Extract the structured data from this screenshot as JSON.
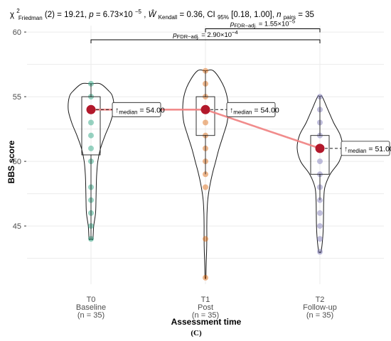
{
  "chart_data": {
    "type": "violin-box-scatter",
    "subtitle_parts": {
      "chi": "χ",
      "chi_sup": "2",
      "chi_sub": "Friedman",
      "df": "(2) = 19.21, ",
      "p_label": "p",
      "p_val": " = 6.73×10",
      "p_exp": "−5",
      "sep1": ", ",
      "w_label": "Ŵ",
      "w_sub": "Kendall",
      "w_val": " = 0.36, CI",
      "ci_sub": "95%",
      "ci_val": " [0.18, 1.00], ",
      "n_label": "n",
      "n_sub": "pairs",
      "n_val": " = 35"
    },
    "xlabel": "Assessment time",
    "ylabel": "BBS score",
    "ylim": [
      40.5,
      60.5
    ],
    "yticks": [
      45,
      50,
      55,
      60
    ],
    "categories": [
      {
        "code": "T0",
        "name": "Baseline",
        "n": "(n = 35)"
      },
      {
        "code": "T1",
        "name": "Post",
        "n": "(n = 35)"
      },
      {
        "code": "T2",
        "name": "Follow-up",
        "n": "(n = 35)"
      }
    ],
    "series": [
      {
        "color": "#1b9e77",
        "points": [
          44,
          45,
          46,
          47,
          48,
          50,
          51,
          52,
          53,
          54,
          55,
          56
        ],
        "median": 54,
        "q1": 50.5,
        "q3": 55,
        "whisker_low": 44,
        "whisker_high": 56,
        "median_label": "54.00",
        "violin": [
          [
            44,
            0.08
          ],
          [
            45,
            0.12
          ],
          [
            46,
            0.2
          ],
          [
            47,
            0.22
          ],
          [
            48,
            0.23
          ],
          [
            49,
            0.25
          ],
          [
            50,
            0.3
          ],
          [
            51,
            0.42
          ],
          [
            52,
            0.62
          ],
          [
            53,
            0.85
          ],
          [
            54,
            1.0
          ],
          [
            55,
            0.95
          ],
          [
            55.5,
            0.75
          ],
          [
            56,
            0.4
          ]
        ]
      },
      {
        "color": "#d95f02",
        "points": [
          41,
          44,
          48,
          49,
          50,
          51,
          52,
          53,
          54,
          55,
          56,
          57
        ],
        "median": 54,
        "q1": 52,
        "q3": 55,
        "whisker_low": 49,
        "whisker_high": 57,
        "median_label": "54.00",
        "violin": [
          [
            41,
            0.02
          ],
          [
            42,
            0.03
          ],
          [
            43,
            0.05
          ],
          [
            44,
            0.06
          ],
          [
            45,
            0.06
          ],
          [
            46,
            0.07
          ],
          [
            47,
            0.1
          ],
          [
            48,
            0.18
          ],
          [
            49,
            0.3
          ],
          [
            50,
            0.45
          ],
          [
            51,
            0.6
          ],
          [
            52,
            0.78
          ],
          [
            53,
            0.95
          ],
          [
            54,
            1.0
          ],
          [
            55,
            0.95
          ],
          [
            56,
            0.75
          ],
          [
            57,
            0.35
          ]
        ]
      },
      {
        "color": "#7570b3",
        "points": [
          43,
          44,
          45,
          46,
          47,
          48,
          49,
          50,
          51,
          52,
          53,
          54,
          55
        ],
        "median": 51,
        "q1": 49,
        "q3": 52,
        "whisker_low": 47,
        "whisker_high": 55,
        "median_label": "51.00",
        "violin": [
          [
            43,
            0.05
          ],
          [
            44,
            0.12
          ],
          [
            45,
            0.15
          ],
          [
            46,
            0.16
          ],
          [
            47,
            0.17
          ],
          [
            48,
            0.22
          ],
          [
            49,
            0.45
          ],
          [
            50,
            0.85
          ],
          [
            51,
            1.0
          ],
          [
            52,
            0.9
          ],
          [
            53,
            0.6
          ],
          [
            54,
            0.35
          ],
          [
            55,
            0.1
          ]
        ]
      }
    ],
    "comparisons": [
      {
        "from": 1,
        "to": 2,
        "label_p": "p",
        "label_sub": "FDR−adj.",
        "label_val": " = 1.55×10",
        "label_exp": "−5"
      },
      {
        "from": 0,
        "to": 2,
        "label_p": "p",
        "label_sub": "FDR−adj.",
        "label_val": " = 2.90×10",
        "label_exp": "−4"
      }
    ],
    "median_prefix": "median",
    "median_arrow": "↑",
    "median_color": "#b2182b",
    "trend_color": "#f08080",
    "grid": true,
    "panel_caption": "(C)"
  }
}
